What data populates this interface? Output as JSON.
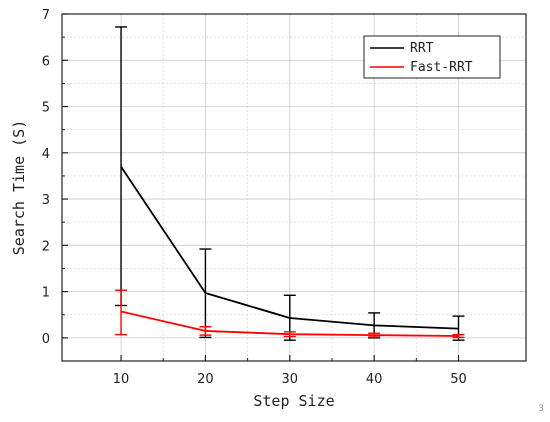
{
  "page_number": "3",
  "chart_data": {
    "type": "line",
    "title": "",
    "xlabel": "Step Size",
    "ylabel": "Search Time (S)",
    "x": [
      10,
      20,
      30,
      40,
      50
    ],
    "xlim": [
      3,
      58
    ],
    "ylim": [
      -0.5,
      7
    ],
    "xticks": [
      10,
      20,
      30,
      40,
      50
    ],
    "yticks": [
      0,
      1,
      2,
      3,
      4,
      5,
      6,
      7
    ],
    "grid": true,
    "legend_position": "top-right",
    "error_bars": true,
    "series": [
      {
        "name": "RRT",
        "color": "#000000",
        "values": [
          3.7,
          0.97,
          0.43,
          0.27,
          0.2
        ],
        "err_low": [
          0.7,
          0.01,
          -0.05,
          0.0,
          -0.05
        ],
        "err_high": [
          6.72,
          1.92,
          0.92,
          0.54,
          0.47
        ]
      },
      {
        "name": "Fast-RRT",
        "color": "#ff0000",
        "values": [
          0.57,
          0.15,
          0.08,
          0.06,
          0.04
        ],
        "err_low": [
          0.07,
          0.06,
          0.03,
          0.02,
          0.01
        ],
        "err_high": [
          1.03,
          0.24,
          0.13,
          0.1,
          0.07
        ]
      }
    ]
  }
}
